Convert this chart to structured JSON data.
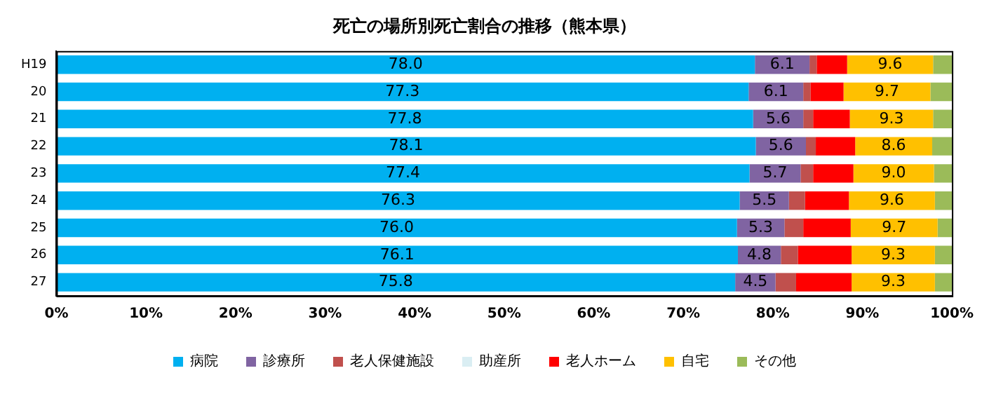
{
  "chart_data": {
    "type": "bar",
    "orientation": "horizontal",
    "stacked": true,
    "title": "死亡の場所別死亡割合の推移（熊本県）",
    "categories": [
      "H19",
      "20",
      "21",
      "22",
      "23",
      "24",
      "25",
      "26",
      "27"
    ],
    "series": [
      {
        "name": "病院",
        "color": "#00b0f0",
        "values": [
          78.0,
          77.3,
          77.8,
          78.1,
          77.4,
          76.3,
          76.0,
          76.1,
          75.8
        ],
        "value_labels": [
          "78.0",
          "77.3",
          "77.8",
          "78.1",
          "77.4",
          "76.3",
          "76.0",
          "76.1",
          "75.8"
        ]
      },
      {
        "name": "診療所",
        "color": "#8064a2",
        "values": [
          6.1,
          6.1,
          5.6,
          5.6,
          5.7,
          5.5,
          5.3,
          4.8,
          4.5
        ],
        "value_labels": [
          "6.1",
          "6.1",
          "5.6",
          "5.6",
          "5.7",
          "5.5",
          "5.3",
          "4.8",
          "4.5"
        ]
      },
      {
        "name": "老人保健施設",
        "color": "#c0504d",
        "values": [
          0.8,
          0.8,
          1.1,
          1.1,
          1.4,
          1.8,
          2.1,
          1.9,
          2.3
        ]
      },
      {
        "name": "助産所",
        "color": "#daeef3",
        "values": [
          0,
          0,
          0,
          0,
          0,
          0,
          0,
          0,
          0
        ]
      },
      {
        "name": "老人ホーム",
        "color": "#ff0000",
        "values": [
          3.4,
          3.7,
          4.1,
          4.4,
          4.5,
          4.9,
          5.3,
          6.0,
          6.2
        ]
      },
      {
        "name": "自宅",
        "color": "#ffc000",
        "values": [
          9.6,
          9.7,
          9.3,
          8.6,
          9.0,
          9.6,
          9.7,
          9.3,
          9.3
        ],
        "value_labels": [
          "9.6",
          "9.7",
          "9.3",
          "8.6",
          "9.0",
          "9.6",
          "9.7",
          "9.3",
          "9.3"
        ]
      },
      {
        "name": "その他",
        "color": "#9bbb59",
        "values": [
          2.1,
          2.4,
          2.1,
          2.2,
          2.0,
          1.9,
          1.6,
          1.9,
          1.9
        ]
      }
    ],
    "xlim": [
      0,
      100
    ],
    "xticks": [
      {
        "value": 0,
        "label": "0%"
      },
      {
        "value": 10,
        "label": "10%"
      },
      {
        "value": 20,
        "label": "20%"
      },
      {
        "value": 30,
        "label": "30%"
      },
      {
        "value": 40,
        "label": "40%"
      },
      {
        "value": 50,
        "label": "50%"
      },
      {
        "value": 60,
        "label": "60%"
      },
      {
        "value": 70,
        "label": "70%"
      },
      {
        "value": 80,
        "label": "80%"
      },
      {
        "value": 90,
        "label": "90%"
      },
      {
        "value": 100,
        "label": "100%"
      }
    ],
    "grid": false,
    "legend": "bottom"
  }
}
